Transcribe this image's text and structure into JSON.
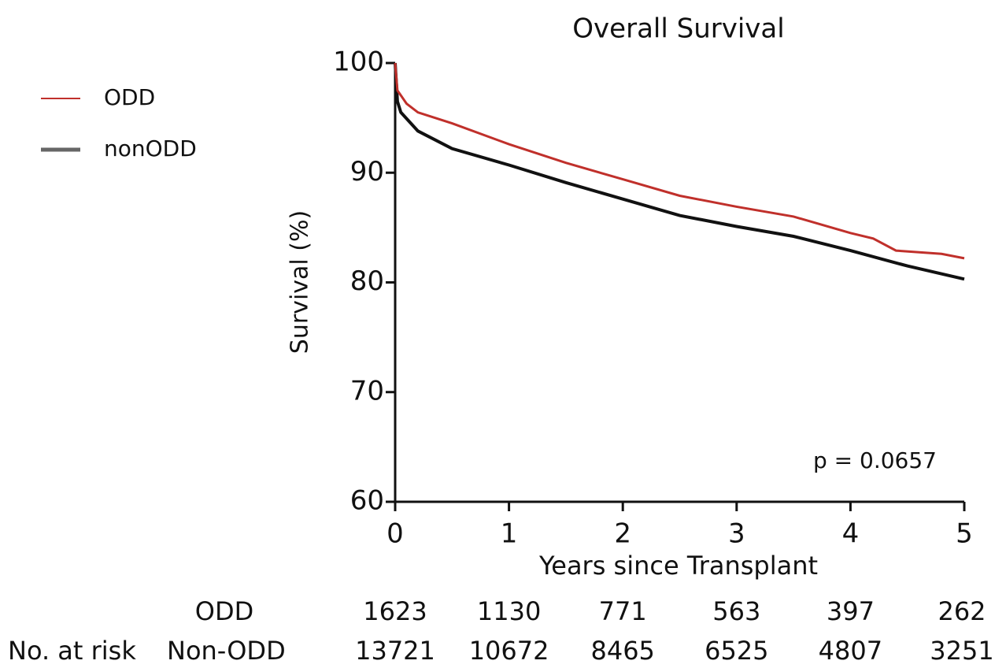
{
  "chart_data": {
    "type": "line",
    "title": "Overall Survival",
    "xlabel": "Years since Transplant",
    "ylabel": "Survival (%)",
    "annotation": "p = 0.0657",
    "xlim": [
      0,
      5
    ],
    "ylim": [
      60,
      100
    ],
    "xticks": [
      0,
      1,
      2,
      3,
      4,
      5
    ],
    "yticks": [
      60,
      70,
      80,
      90,
      100
    ],
    "legend": "upper left",
    "series": [
      {
        "name": "ODD",
        "color": "#c0302b",
        "x": [
          0,
          0.02,
          0.1,
          0.2,
          0.5,
          1,
          1.5,
          2,
          2.5,
          3,
          3.5,
          4,
          4.2,
          4.4,
          4.8,
          5
        ],
        "values": [
          100,
          97.5,
          96.3,
          95.5,
          94.5,
          92.6,
          90.9,
          89.4,
          87.9,
          86.9,
          86.0,
          84.5,
          84.0,
          82.9,
          82.6,
          82.2
        ]
      },
      {
        "name": "nonODD",
        "color": "#111111",
        "x": [
          0,
          0.02,
          0.05,
          0.2,
          0.5,
          1,
          1.5,
          2,
          2.5,
          3,
          3.5,
          4,
          4.5,
          5
        ],
        "values": [
          100,
          96.5,
          95.5,
          93.8,
          92.2,
          90.7,
          89.1,
          87.6,
          86.1,
          85.1,
          84.2,
          82.9,
          81.5,
          80.3
        ]
      }
    ],
    "risk_table": {
      "title": "No. at risk",
      "rows": [
        {
          "name": "ODD",
          "color": "#c0302b",
          "values": [
            1623,
            1130,
            771,
            563,
            397,
            262
          ]
        },
        {
          "name": "Non-ODD",
          "color": "#111111",
          "values": [
            13721,
            10672,
            8465,
            6525,
            4807,
            3251
          ]
        }
      ]
    }
  }
}
